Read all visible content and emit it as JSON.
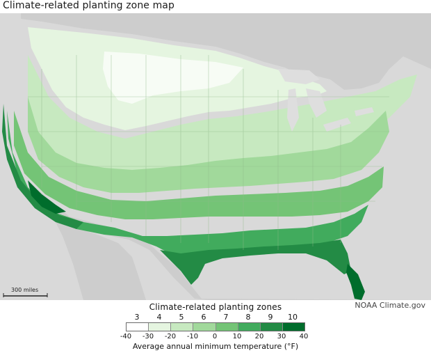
{
  "title": "Climate-related planting  zone  map",
  "credit": "NOAA Climate.gov",
  "scale_label": "300 miles",
  "legend": {
    "title": "Climate-related planting zones",
    "zones": [
      "3",
      "4",
      "5",
      "6",
      "7",
      "8",
      "9",
      "10"
    ],
    "temperatures": [
      "-40",
      "-30",
      "-20",
      "-10",
      "0",
      "10",
      "20",
      "30",
      "40"
    ],
    "axis_label": "Average annual minimum temperature (°F)",
    "colors": [
      "#ffffff",
      "#e5f5e0",
      "#c7e9c0",
      "#a1d99b",
      "#74c476",
      "#41ab5d",
      "#238b45",
      "#006d2c"
    ]
  },
  "map_colors": {
    "land_outside": "#cfcfcf",
    "water": "#dedede",
    "borders": "#8fb98a"
  }
}
